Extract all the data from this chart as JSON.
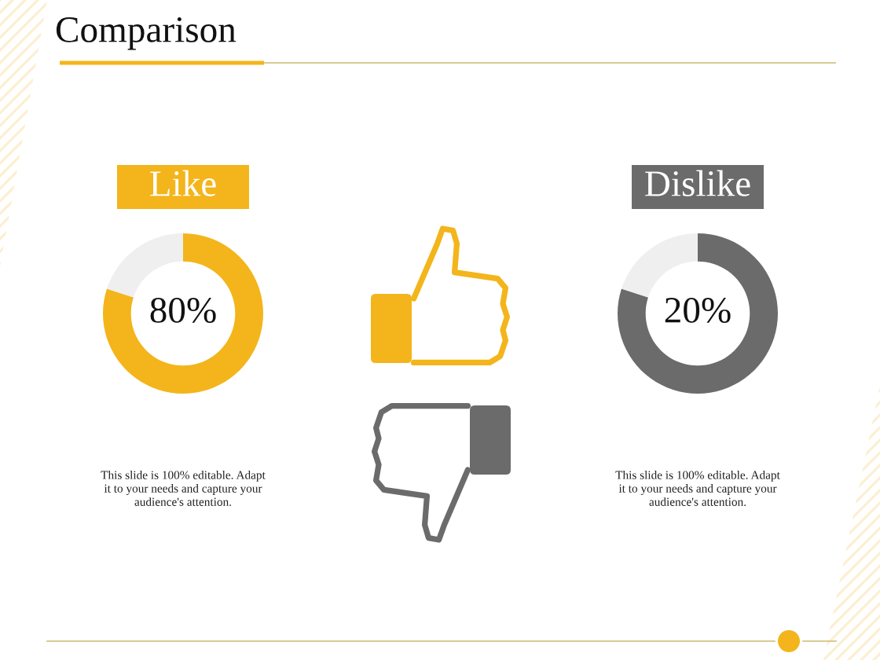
{
  "chart_data": [
    {
      "type": "other",
      "title": "Comparison"
    },
    {
      "type": "donut",
      "title": "Like",
      "categories": [
        null,
        null
      ],
      "values": [
        80,
        20
      ],
      "colors": [
        "#f3b51b",
        "#efefef"
      ],
      "annotations": [
        "80%",
        "This slide is 100% editable. Adapt\nit to your needs and capture your\naudience's attention."
      ]
    },
    {
      "type": "donut",
      "title": "Dislike",
      "categories": [
        null,
        null
      ],
      "values": [
        80,
        20
      ],
      "colors": [
        "#6b6b6b",
        "#efefef"
      ],
      "annotations": [
        "20%",
        "This slide is 100% editable. Adapt\nit to your needs and capture your\naudience's attention."
      ]
    }
  ]
}
